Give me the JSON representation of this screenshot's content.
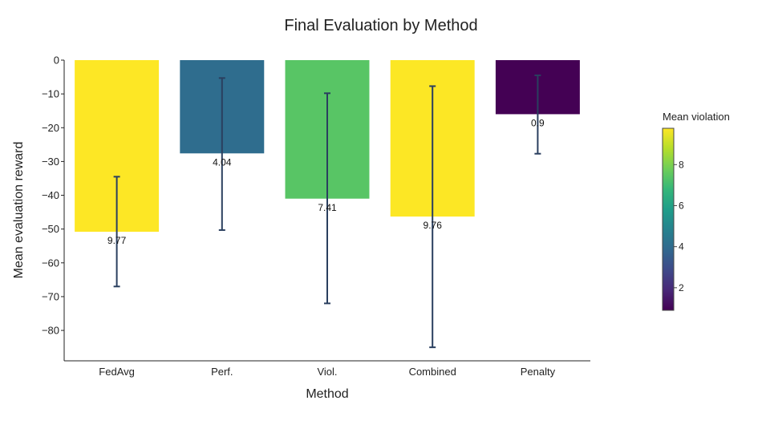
{
  "chart_data": {
    "type": "bar",
    "title": "Final Evaluation by Method",
    "xlabel": "Method",
    "ylabel": "Mean evaluation reward",
    "categories": [
      "FedAvg",
      "Perf.",
      "Viol.",
      "Combined",
      "Penalty"
    ],
    "values": [
      -50.8,
      -27.6,
      -41.0,
      -46.3,
      -16.0
    ],
    "error_upper": [
      -34.5,
      -5.3,
      -9.8,
      -7.7,
      -4.5
    ],
    "error_lower": [
      -67.0,
      -50.3,
      -72.0,
      -85.0,
      -27.7
    ],
    "bar_labels": [
      "9.77",
      "4.04",
      "7.41",
      "9.76",
      "0.9"
    ],
    "color_values": [
      9.77,
      4.04,
      7.41,
      9.76,
      0.9
    ],
    "ylim": [
      -89,
      0
    ],
    "yticks": [
      0,
      -10,
      -20,
      -30,
      -40,
      -50,
      -60,
      -70,
      -80
    ],
    "ytick_labels": [
      "0",
      "−10",
      "−20",
      "−30",
      "−40",
      "−50",
      "−60",
      "−70",
      "−80"
    ],
    "error_bar_color": "#2a3f5f",
    "colorbar": {
      "title": "Mean violation",
      "range": [
        0.9,
        9.77
      ],
      "ticks": [
        2,
        4,
        6,
        8
      ],
      "tick_labels": [
        "2",
        "4",
        "6",
        "8"
      ],
      "colorscale": [
        "#440154",
        "#482878",
        "#3e4989",
        "#31688e",
        "#26828e",
        "#1f9e89",
        "#35b779",
        "#6ece58",
        "#b5de2b",
        "#fde725"
      ]
    }
  }
}
